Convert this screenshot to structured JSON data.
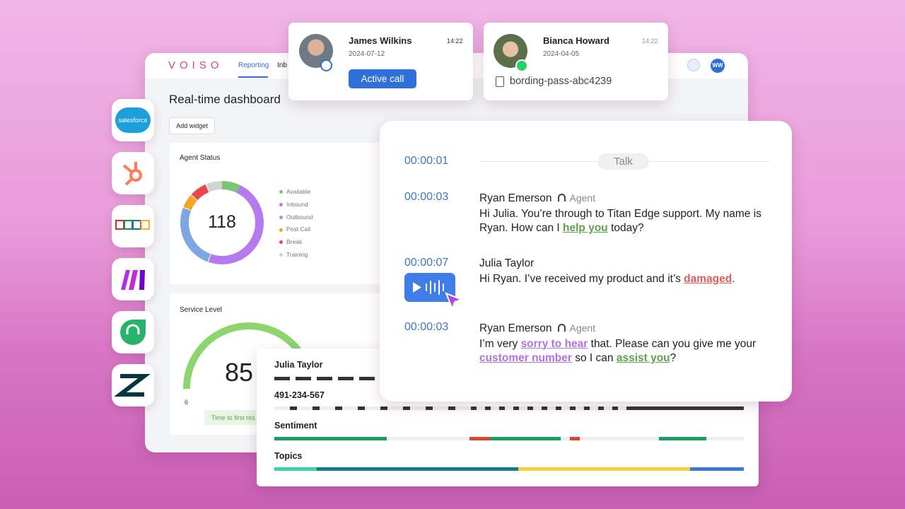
{
  "nav": {
    "logo": "VOISO",
    "tabs": [
      "Reporting",
      "Inb"
    ],
    "avatar": "WW"
  },
  "dashboard": {
    "title": "Real-time dashboard",
    "add_widget": "Add widget",
    "agent_status": {
      "title": "Agent Status",
      "total": "118",
      "legend": [
        "Available",
        "Inbound",
        "Outbound",
        "Post Call",
        "Break",
        "Training"
      ]
    },
    "service_level": {
      "title": "Service Level",
      "value": "85",
      "min": "6",
      "badge": "Time to first res"
    }
  },
  "integrations": {
    "salesforce": "salesforce"
  },
  "calls": [
    {
      "name": "James Wilkins",
      "time": "14:22",
      "date": "2024-07-12",
      "action": "Active call"
    },
    {
      "name": "Bianca Howard",
      "time": "14:22",
      "date": "2024-04-05",
      "attachment": "bording-pass-abc4239"
    }
  ],
  "transcript": {
    "divider_time": "00:00:01",
    "divider_label": "Talk",
    "messages": [
      {
        "time": "00:00:03",
        "speaker": "Ryan Emerson",
        "role": "Agent",
        "segments": [
          {
            "text": "Hi Julia. You’re through to Titan Edge support. My name is Ryan. How can I "
          },
          {
            "text": "help you",
            "highlight": "green"
          },
          {
            "text": " today?"
          }
        ]
      },
      {
        "time": "00:00:07",
        "speaker": "Julia Taylor",
        "segments": [
          {
            "text": "Hi Ryan. I’ve received my product and it’s "
          },
          {
            "text": "damaged",
            "highlight": "red"
          },
          {
            "text": "."
          }
        ]
      },
      {
        "time": "00:00:03",
        "speaker": "Ryan Emerson",
        "role": "Agent",
        "segments": [
          {
            "text": "I’m very "
          },
          {
            "text": "sorry to hear",
            "highlight": "purple"
          },
          {
            "text": " that. Please can you give me your "
          },
          {
            "text": "customer number",
            "highlight": "purple"
          },
          {
            "text": " so I can "
          },
          {
            "text": "assist you",
            "highlight": "green"
          },
          {
            "text": "?"
          }
        ]
      }
    ]
  },
  "analysis": {
    "caller": "Julia Taylor",
    "number": "491-234-567",
    "sentiment": "Sentiment",
    "topics": "Topics"
  }
}
